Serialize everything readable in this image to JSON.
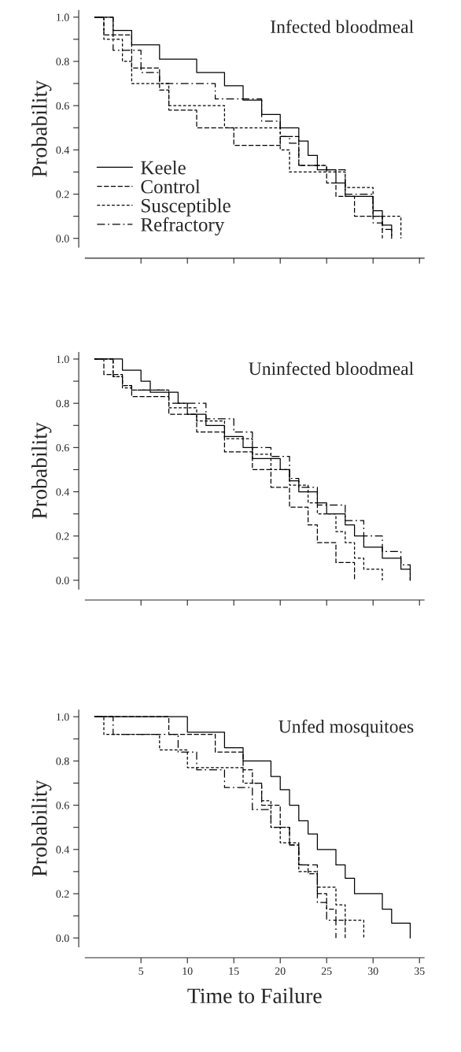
{
  "chart_data": [
    {
      "type": "step",
      "title": "Infected bloodmeal",
      "ylabel": "Probability",
      "xlim": [
        -1,
        35.5
      ],
      "ylim": [
        -0.04,
        1.03
      ],
      "xticks": [
        {
          "value": 5,
          "label": null
        },
        {
          "value": 10,
          "label": null
        },
        {
          "value": 15,
          "label": null
        },
        {
          "value": 20,
          "label": null
        },
        {
          "value": 25,
          "label": null
        },
        {
          "value": 30,
          "label": null
        },
        {
          "value": 35,
          "label": null
        }
      ],
      "yticks": [
        {
          "value": 0.0,
          "label": "0.0"
        },
        {
          "value": 0.1,
          "label": null
        },
        {
          "value": 0.2,
          "label": "0.2"
        },
        {
          "value": 0.3,
          "label": null
        },
        {
          "value": 0.4,
          "label": "0.4"
        },
        {
          "value": 0.5,
          "label": null
        },
        {
          "value": 0.6,
          "label": "0.6"
        },
        {
          "value": 0.7,
          "label": null
        },
        {
          "value": 0.8,
          "label": "0.8"
        },
        {
          "value": 0.9,
          "label": null
        },
        {
          "value": 1.0,
          "label": "1.0"
        }
      ],
      "tick_labels": "y",
      "legend": "bottom left",
      "series": [
        {
          "name": "Keele",
          "color": "#000000",
          "line_style": "solid",
          "x": [
            0,
            2,
            4,
            7,
            11,
            14,
            16,
            18,
            20,
            22,
            23,
            24,
            26,
            27,
            30,
            31,
            32
          ],
          "values": [
            1.0,
            0.94,
            0.875,
            0.81,
            0.75,
            0.69,
            0.625,
            0.56,
            0.5,
            0.44,
            0.375,
            0.31,
            0.25,
            0.19,
            0.125,
            0.06,
            0.0
          ]
        },
        {
          "name": "Control",
          "color": "#000000",
          "line_style": "dashed",
          "x": [
            0,
            1,
            4,
            7,
            8,
            11,
            15,
            20,
            22,
            25,
            26,
            28,
            31
          ],
          "values": [
            1.0,
            0.92,
            0.77,
            0.67,
            0.58,
            0.5,
            0.42,
            0.46,
            0.33,
            0.25,
            0.19,
            0.1,
            0.0
          ]
        },
        {
          "name": "Susceptible",
          "color": "#000000",
          "line_style": "dotted",
          "x": [
            0,
            1,
            3,
            4,
            8,
            14,
            20,
            21,
            27,
            30,
            33
          ],
          "values": [
            1.0,
            0.9,
            0.8,
            0.7,
            0.6,
            0.5,
            0.4,
            0.3,
            0.23,
            0.1,
            0.0
          ]
        },
        {
          "name": "Refractory",
          "color": "#000000",
          "line_style": "dashdot",
          "x": [
            0,
            2,
            5,
            7,
            13,
            18,
            20,
            21,
            22,
            25,
            27,
            30,
            31,
            32
          ],
          "values": [
            1.0,
            0.85,
            0.75,
            0.7,
            0.63,
            0.53,
            0.46,
            0.43,
            0.33,
            0.31,
            0.2,
            0.07,
            0.04,
            0.0
          ]
        }
      ]
    },
    {
      "type": "step",
      "title": "Uninfected bloodmeal",
      "ylabel": "Probability",
      "xlim": [
        -1,
        35.5
      ],
      "ylim": [
        -0.04,
        1.03
      ],
      "xticks": [
        {
          "value": 5,
          "label": null
        },
        {
          "value": 10,
          "label": null
        },
        {
          "value": 15,
          "label": null
        },
        {
          "value": 20,
          "label": null
        },
        {
          "value": 25,
          "label": null
        },
        {
          "value": 30,
          "label": null
        },
        {
          "value": 35,
          "label": null
        }
      ],
      "yticks": [
        {
          "value": 0.0,
          "label": "0.0"
        },
        {
          "value": 0.1,
          "label": null
        },
        {
          "value": 0.2,
          "label": "0.2"
        },
        {
          "value": 0.3,
          "label": null
        },
        {
          "value": 0.4,
          "label": "0.4"
        },
        {
          "value": 0.5,
          "label": null
        },
        {
          "value": 0.6,
          "label": "0.6"
        },
        {
          "value": 0.7,
          "label": null
        },
        {
          "value": 0.8,
          "label": "0.8"
        },
        {
          "value": 0.9,
          "label": null
        },
        {
          "value": 1.0,
          "label": "1.0"
        }
      ],
      "tick_labels": "y",
      "series": [
        {
          "color": "#000000",
          "line_style": "solid",
          "x": [
            0,
            3,
            5,
            6,
            9,
            10,
            12,
            14,
            16,
            17,
            20,
            21,
            22,
            24,
            25,
            27,
            28,
            29,
            31,
            33,
            34
          ],
          "values": [
            1.0,
            0.95,
            0.9,
            0.85,
            0.8,
            0.75,
            0.7,
            0.65,
            0.6,
            0.55,
            0.5,
            0.45,
            0.4,
            0.35,
            0.3,
            0.25,
            0.2,
            0.15,
            0.1,
            0.05,
            0.0
          ]
        },
        {
          "color": "#000000",
          "line_style": "dashed",
          "x": [
            0,
            1,
            3,
            4,
            8,
            11,
            14,
            17,
            19,
            21,
            23,
            24,
            26,
            28
          ],
          "values": [
            1.0,
            0.93,
            0.88,
            0.83,
            0.75,
            0.67,
            0.58,
            0.5,
            0.42,
            0.33,
            0.25,
            0.17,
            0.08,
            0.0
          ]
        },
        {
          "color": "#000000",
          "line_style": "dotted",
          "x": [
            0,
            2,
            3,
            4,
            8,
            11,
            14,
            17,
            19,
            21,
            23,
            24,
            26,
            27,
            28,
            29,
            31
          ],
          "values": [
            1.0,
            0.92,
            0.87,
            0.86,
            0.78,
            0.72,
            0.64,
            0.57,
            0.5,
            0.43,
            0.35,
            0.3,
            0.22,
            0.17,
            0.1,
            0.05,
            0.0
          ]
        },
        {
          "color": "#000000",
          "line_style": "dashdot",
          "x": [
            0,
            2,
            3,
            4,
            8,
            12,
            15,
            17,
            19,
            21,
            22,
            24,
            27,
            29,
            31,
            33,
            34
          ],
          "values": [
            1.0,
            0.92,
            0.88,
            0.86,
            0.8,
            0.73,
            0.67,
            0.6,
            0.56,
            0.46,
            0.42,
            0.34,
            0.27,
            0.2,
            0.13,
            0.07,
            0.0
          ]
        }
      ]
    },
    {
      "type": "step",
      "title": "Unfed mosquitoes",
      "ylabel": "Probability",
      "xlabel": "Time to Failure",
      "xlim": [
        -1,
        35.5
      ],
      "ylim": [
        -0.04,
        1.03
      ],
      "xticks": [
        5,
        10,
        15,
        20,
        25,
        30,
        35
      ],
      "yticks": [
        {
          "value": 0.0,
          "label": "0.0"
        },
        {
          "value": 0.1,
          "label": null
        },
        {
          "value": 0.2,
          "label": "0.2"
        },
        {
          "value": 0.3,
          "label": null
        },
        {
          "value": 0.4,
          "label": "0.4"
        },
        {
          "value": 0.5,
          "label": null
        },
        {
          "value": 0.6,
          "label": "0.6"
        },
        {
          "value": 0.7,
          "label": null
        },
        {
          "value": 0.8,
          "label": "0.8"
        },
        {
          "value": 0.9,
          "label": null
        },
        {
          "value": 1.0,
          "label": "1.0"
        }
      ],
      "series": [
        {
          "color": "#000000",
          "line_style": "solid",
          "x": [
            0,
            10,
            14,
            16,
            19,
            20,
            21,
            22,
            23,
            24,
            26,
            27,
            28,
            31,
            32,
            34
          ],
          "values": [
            1.0,
            0.93,
            0.86,
            0.8,
            0.73,
            0.67,
            0.6,
            0.53,
            0.47,
            0.4,
            0.33,
            0.27,
            0.2,
            0.13,
            0.067,
            0.0
          ]
        },
        {
          "color": "#000000",
          "line_style": "dashed",
          "x": [
            0,
            8,
            13,
            16,
            17,
            18,
            20,
            21,
            22,
            23,
            24,
            25,
            26,
            27
          ],
          "values": [
            1.0,
            0.92,
            0.84,
            0.76,
            0.7,
            0.6,
            0.5,
            0.42,
            0.33,
            0.29,
            0.2,
            0.13,
            0.08,
            0.0
          ]
        },
        {
          "color": "#000000",
          "line_style": "dotted",
          "x": [
            0,
            1,
            7,
            10,
            16,
            18,
            19,
            20,
            22,
            24,
            26,
            27,
            29
          ],
          "values": [
            1.0,
            0.92,
            0.85,
            0.77,
            0.7,
            0.62,
            0.5,
            0.43,
            0.3,
            0.23,
            0.15,
            0.08,
            0.0
          ]
        },
        {
          "color": "#000000",
          "line_style": "dashdot",
          "x": [
            0,
            2,
            9,
            11,
            14,
            17,
            19,
            21,
            22,
            24,
            25,
            26
          ],
          "values": [
            1.0,
            0.92,
            0.84,
            0.76,
            0.68,
            0.58,
            0.5,
            0.42,
            0.33,
            0.16,
            0.08,
            0.0
          ]
        }
      ]
    }
  ]
}
